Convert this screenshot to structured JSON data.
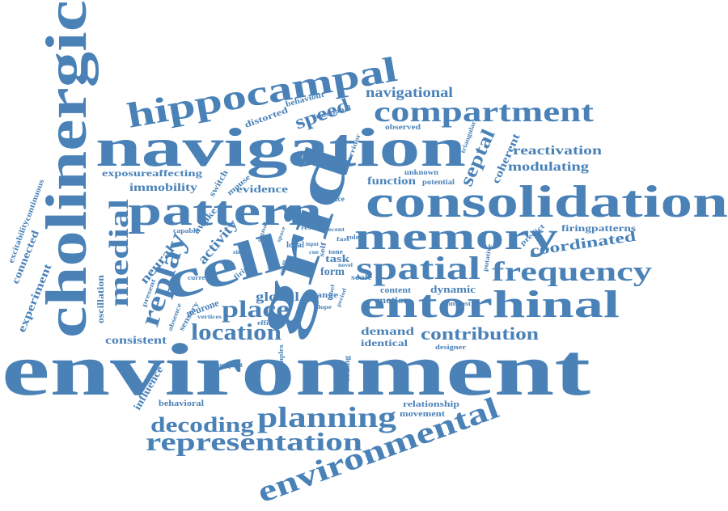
{
  "colors": {
    "text": "#4a82b8",
    "background": "#ffffff"
  },
  "words": {
    "environment": "environment",
    "cholinergic": "cholinergic",
    "navigation": "navigation",
    "consolidation": "consolidation",
    "grid": "grid",
    "cell": "cell",
    "memory": "memory",
    "entorhinal": "entorhinal",
    "hippocampal": "hippocampal",
    "pattern": "pattern",
    "compartment": "compartment",
    "spatial": "spatial",
    "frequency": "frequency",
    "representation": "representation",
    "environmental": "environmental",
    "planning": "planning",
    "decoding": "decoding",
    "location": "location",
    "place": "place",
    "medial": "medial",
    "replay": "replay",
    "speed": "speed",
    "navigational": "navigational",
    "contribution": "contribution",
    "septal": "septal",
    "reactivation": "reactivation",
    "modulating": "modulating",
    "coordinated": "coordinated",
    "firingpatterns": "firingpatterns",
    "coherent": "coherent",
    "exposure": "exposure",
    "affecting": "affecting",
    "immobility": "immobility",
    "evidence": "evidence",
    "function": "function",
    "reduce": "reduce",
    "activity": "activity",
    "neural": "neural",
    "global": "global",
    "motion": "motion",
    "dynamic": "dynamic",
    "demand": "demand",
    "identical": "identical",
    "consistent": "consistent",
    "oscillation": "oscillation",
    "experiment": "experiment",
    "connected": "connected",
    "excitability": "excitability",
    "continuous": "continuous",
    "influence": "influence",
    "behavioral": "behavioral",
    "relationship": "relationship",
    "movement": "movement",
    "distorted": "distorted",
    "behaviour": "behaviour",
    "functional": "functional",
    "observed": "observed",
    "unknown": "unknown",
    "potential": "potential",
    "switch": "switch",
    "mouse": "mouse",
    "awake": "awake",
    "triangular": "triangular",
    "corridor": "corridor",
    "predict": "predict",
    "putative": "putative",
    "sensory": "sensory",
    "neurone": "neurone",
    "absence": "absence",
    "present": "present",
    "current": "current",
    "capable": "capable",
    "vertices": "vertices",
    "efficient": "efficient",
    "change": "change",
    "support": "support",
    "complex": "complex",
    "coding": "coding",
    "designer": "designer",
    "content": "content",
    "scale": "scale",
    "contrast": "contrast",
    "task": "task",
    "form": "form",
    "local": "local",
    "rest": "rest",
    "self": "self",
    "tone": "tone",
    "novel": "novel",
    "role": "role",
    "result": "result",
    "recent": "recent",
    "firing": "firing",
    "animal": "animal",
    "signal": "signal",
    "single": "single",
    "room": "room",
    "space": "space",
    "input": "input",
    "area": "area",
    "cue": "cue",
    "period": "period",
    "label": "label",
    "slope": "slope",
    "fast": "fast"
  }
}
